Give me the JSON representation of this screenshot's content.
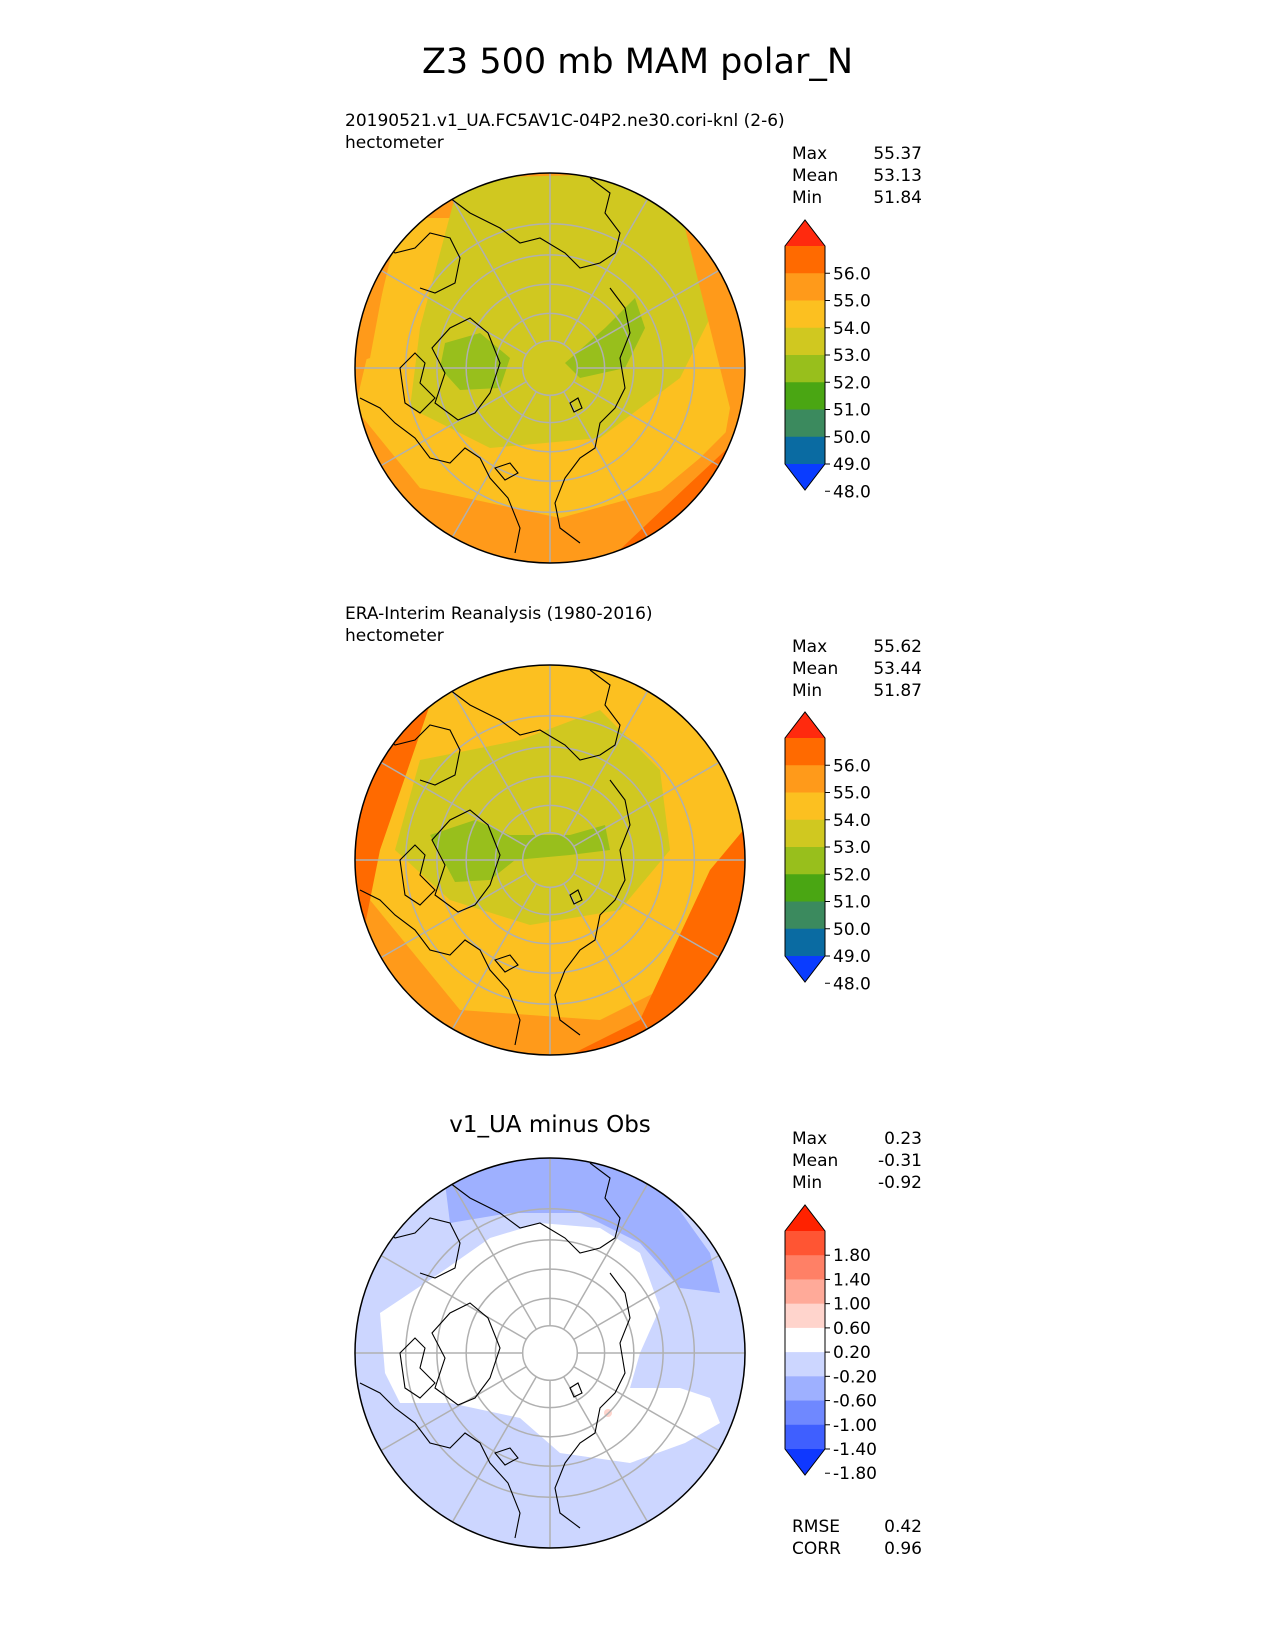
{
  "title": "Z3 500 mb MAM polar_N",
  "panels": [
    {
      "id": "test",
      "subtitle": "20190521.v1_UA.FC5AV1C-04P2.ne30.cori-knl (2-6)",
      "units": "hectometer",
      "stats": [
        {
          "label": "Max",
          "value": "55.37"
        },
        {
          "label": "Mean",
          "value": "53.13"
        },
        {
          "label": "Min",
          "value": "51.84"
        }
      ]
    },
    {
      "id": "reference",
      "subtitle": "ERA-Interim Reanalysis (1980-2016)",
      "units": "hectometer",
      "stats": [
        {
          "label": "Max",
          "value": "55.62"
        },
        {
          "label": "Mean",
          "value": "53.44"
        },
        {
          "label": "Min",
          "value": "51.87"
        }
      ]
    },
    {
      "id": "diff",
      "center_title": "v1_UA minus Obs",
      "stats": [
        {
          "label": "Max",
          "value": "0.23"
        },
        {
          "label": "Mean",
          "value": "-0.31"
        },
        {
          "label": "Min",
          "value": "-0.92"
        }
      ],
      "metrics": [
        {
          "label": "RMSE",
          "value": "0.42"
        },
        {
          "label": "CORR",
          "value": "0.96"
        }
      ]
    }
  ],
  "chart_data": [
    {
      "type": "heatmap",
      "projection": "north polar stereographic",
      "title": "20190521.v1_UA.FC5AV1C-04P2.ne30.cori-knl (2-6)",
      "units": "hectometer",
      "colorbar": {
        "ticks": [
          "56.0",
          "55.0",
          "54.0",
          "53.0",
          "52.0",
          "51.0",
          "50.0",
          "49.0",
          "48.0"
        ],
        "colors": [
          "#ff2a0e",
          "#ff6a00",
          "#ff9a1a",
          "#fcc020",
          "#d0c820",
          "#98bf1c",
          "#4aa613",
          "#3b8a5e",
          "#0a6ba2",
          "#0a3cff"
        ],
        "extend": "both"
      },
      "stats": {
        "max": 55.37,
        "mean": 53.13,
        "min": 51.84
      }
    },
    {
      "type": "heatmap",
      "projection": "north polar stereographic",
      "title": "ERA-Interim Reanalysis (1980-2016)",
      "units": "hectometer",
      "colorbar": {
        "ticks": [
          "56.0",
          "55.0",
          "54.0",
          "53.0",
          "52.0",
          "51.0",
          "50.0",
          "49.0",
          "48.0"
        ],
        "colors": [
          "#ff2a0e",
          "#ff6a00",
          "#ff9a1a",
          "#fcc020",
          "#d0c820",
          "#98bf1c",
          "#4aa613",
          "#3b8a5e",
          "#0a6ba2",
          "#0a3cff"
        ],
        "extend": "both"
      },
      "stats": {
        "max": 55.62,
        "mean": 53.44,
        "min": 51.87
      }
    },
    {
      "type": "heatmap",
      "projection": "north polar stereographic",
      "title": "v1_UA minus Obs",
      "colorbar": {
        "ticks": [
          "1.80",
          "1.40",
          "1.00",
          "0.60",
          "0.20",
          "-0.20",
          "-0.60",
          "-1.00",
          "-1.40",
          "-1.80"
        ],
        "colors": [
          "#ff2200",
          "#ff5533",
          "#ff8066",
          "#ffaa99",
          "#ffd4cc",
          "#ffffff",
          "#ccd6ff",
          "#9eb0ff",
          "#6f88ff",
          "#3f5fff",
          "#0f38ff"
        ],
        "extend": "both"
      },
      "stats": {
        "max": 0.23,
        "mean": -0.31,
        "min": -0.92,
        "rmse": 0.42,
        "corr": 0.96
      }
    }
  ]
}
